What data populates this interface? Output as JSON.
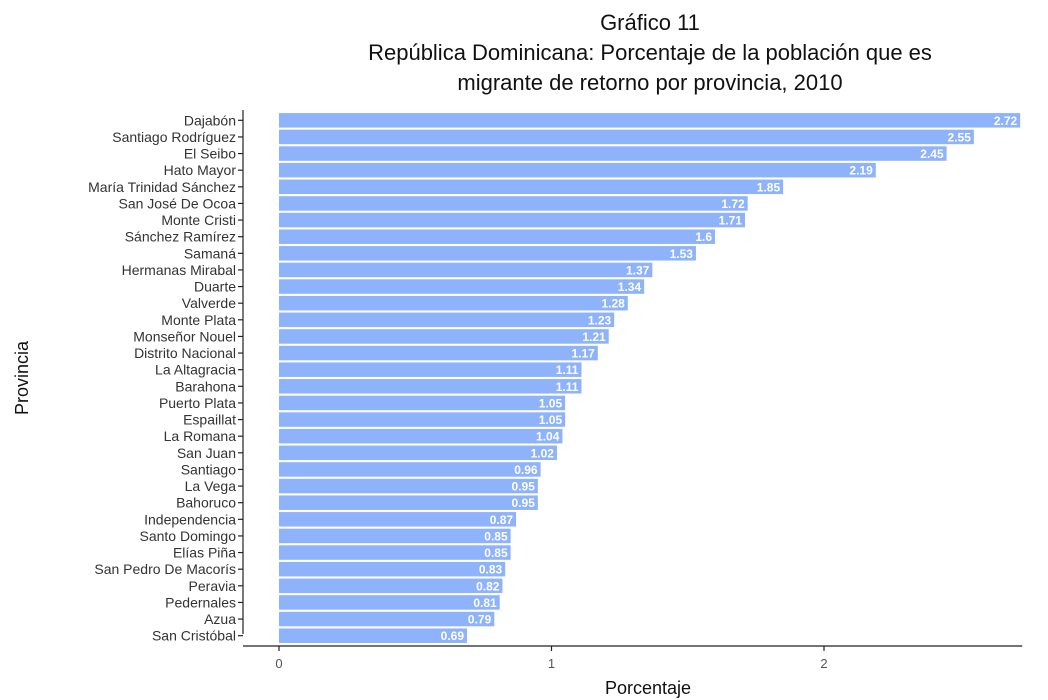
{
  "chart_data": {
    "type": "bar",
    "orientation": "horizontal",
    "title_lines": [
      "Gráfico 11",
      "República Dominicana: Porcentaje de la población que es",
      "migrante de retorno por provincia, 2010"
    ],
    "xlabel": "Porcentaje",
    "ylabel": "Provincia",
    "xlim": [
      0,
      2.72
    ],
    "xticks": [
      "0",
      "1",
      "2"
    ],
    "tick_values": [
      0,
      1,
      2
    ],
    "bar_color": "#8EB3FB",
    "categories": [
      "Dajabón",
      "Santiago Rodríguez",
      "El Seibo",
      "Hato Mayor",
      "María Trinidad Sánchez",
      "San José De Ocoa",
      "Monte Cristi",
      "Sánchez Ramírez",
      "Samaná",
      "Hermanas Mirabal",
      "Duarte",
      "Valverde",
      "Monte Plata",
      "Monseñor Nouel",
      "Distrito Nacional",
      "La Altagracia",
      "Barahona",
      "Puerto Plata",
      "Espaillat",
      "La Romana",
      "San Juan",
      "Santiago",
      "La Vega",
      "Bahoruco",
      "Independencia",
      "Santo Domingo",
      "Elías Piña",
      "San Pedro De Macorís",
      "Peravia",
      "Pedernales",
      "Azua",
      "San Cristóbal"
    ],
    "values": [
      2.72,
      2.55,
      2.45,
      2.19,
      1.85,
      1.72,
      1.71,
      1.6,
      1.53,
      1.37,
      1.34,
      1.28,
      1.23,
      1.21,
      1.17,
      1.11,
      1.11,
      1.05,
      1.05,
      1.04,
      1.02,
      0.96,
      0.95,
      0.95,
      0.87,
      0.85,
      0.85,
      0.83,
      0.82,
      0.81,
      0.79,
      0.69
    ],
    "value_labels": [
      "2.72",
      "2.55",
      "2.45",
      "2.19",
      "1.85",
      "1.72",
      "1.71",
      "1.6",
      "1.53",
      "1.37",
      "1.34",
      "1.28",
      "1.23",
      "1.21",
      "1.17",
      "1.11",
      "1.11",
      "1.05",
      "1.05",
      "1.04",
      "1.02",
      "0.96",
      "0.95",
      "0.95",
      "0.87",
      "0.85",
      "0.85",
      "0.83",
      "0.82",
      "0.81",
      "0.79",
      "0.69"
    ],
    "grid": false
  }
}
